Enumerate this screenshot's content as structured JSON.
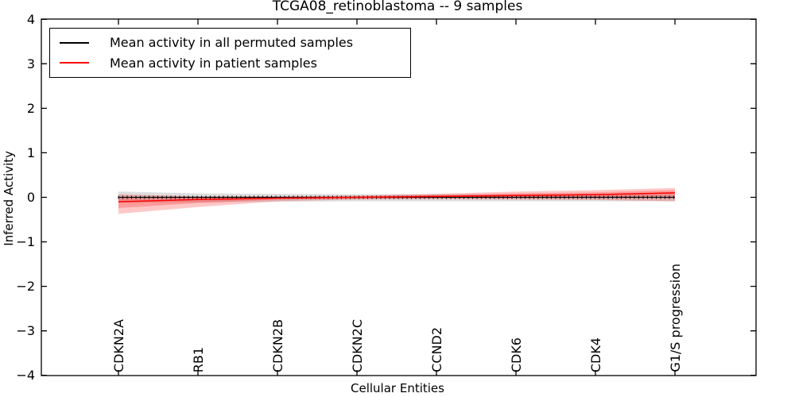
{
  "chart_data": {
    "type": "line",
    "title": "TCGA08_retinoblastoma -- 9 samples",
    "xlabel": "Cellular Entities",
    "ylabel": "Inferred Activity",
    "ylim": [
      -4,
      4
    ],
    "yticks": [
      4,
      3,
      2,
      1,
      0,
      -1,
      -2,
      -3,
      -4
    ],
    "ytick_labels": [
      "4",
      "3",
      "2",
      "1",
      "0",
      "−1",
      "−2",
      "−3",
      "−4"
    ],
    "categories": [
      "CDKN2A",
      "RB1",
      "CDKN2B",
      "CDKN2C",
      "CCND2",
      "CDK6",
      "CDK4",
      "G1/S progression"
    ],
    "grid": false,
    "legend_position": "upper left",
    "series": [
      {
        "name": "Mean activity in all permuted samples",
        "color": "#000000",
        "band_color": "rgba(0,0,0,0.13)",
        "marker": "+",
        "values": [
          0.0,
          0.0,
          0.0,
          0.0,
          0.0,
          0.0,
          0.0,
          0.0
        ],
        "band_upper": [
          0.13,
          0.09,
          0.08,
          0.07,
          0.07,
          0.07,
          0.07,
          0.07
        ],
        "band_lower": [
          -0.12,
          -0.11,
          -0.1,
          -0.09,
          -0.09,
          -0.09,
          -0.09,
          -0.09
        ]
      },
      {
        "name": "Mean activity in patient samples",
        "color": "#ff0000",
        "band_color": "rgba(255,0,0,0.22)",
        "marker": "none",
        "values": [
          -0.1,
          -0.05,
          -0.02,
          0.0,
          0.02,
          0.04,
          0.06,
          0.1
        ],
        "band_upper": [
          0.07,
          0.02,
          0.02,
          0.04,
          0.08,
          0.13,
          0.16,
          0.21
        ],
        "band_lower": [
          -0.37,
          -0.22,
          -0.09,
          -0.05,
          -0.04,
          -0.05,
          -0.06,
          -0.09
        ],
        "inner_band_upper": [
          -0.02,
          -0.01,
          0.01,
          0.02,
          0.05,
          0.09,
          0.11,
          0.16
        ],
        "inner_band_lower": [
          -0.24,
          -0.13,
          -0.05,
          -0.03,
          -0.01,
          -0.01,
          -0.01,
          0.03
        ]
      }
    ]
  },
  "colors": {
    "axis": "#000000",
    "background": "#ffffff"
  }
}
